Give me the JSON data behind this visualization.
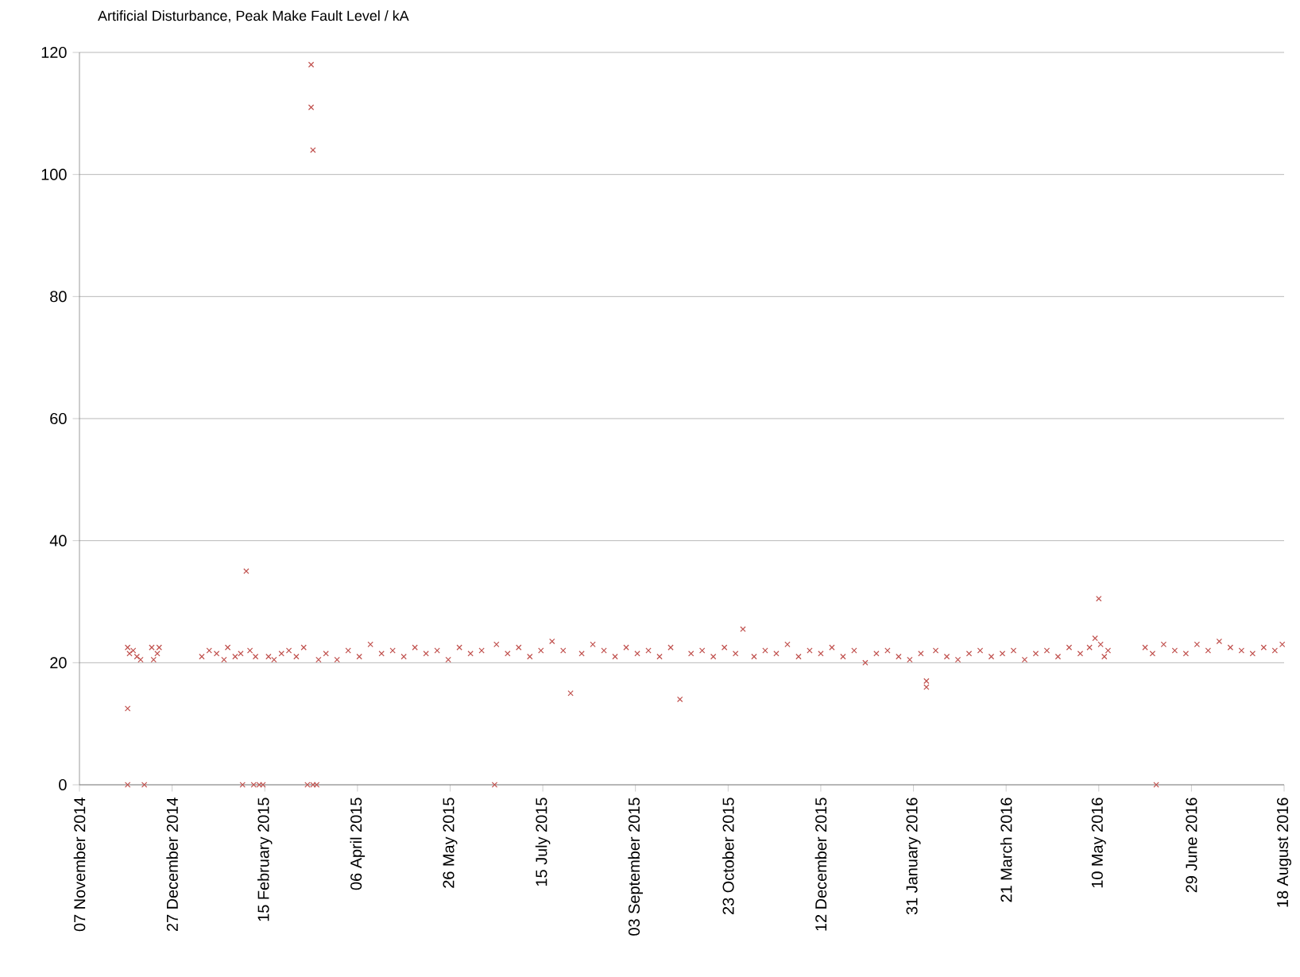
{
  "chart_data": {
    "type": "scatter",
    "title": "Artificial Disturbance,  Peak Make Fault Level / kA",
    "x": [
      "2014-12-03",
      "2014-12-03",
      "2014-12-03",
      "2014-12-04",
      "2014-12-06",
      "2014-12-08",
      "2014-12-10",
      "2014-12-12",
      "2014-12-16",
      "2014-12-17",
      "2014-12-19",
      "2014-12-20",
      "2015-01-12",
      "2015-01-16",
      "2015-01-20",
      "2015-01-24",
      "2015-01-26",
      "2015-01-30",
      "2015-02-02",
      "2015-02-03",
      "2015-02-05",
      "2015-02-07",
      "2015-02-09",
      "2015-02-10",
      "2015-02-12",
      "2015-02-14",
      "2015-02-17",
      "2015-02-20",
      "2015-02-24",
      "2015-02-28",
      "2015-03-04",
      "2015-03-08",
      "2015-03-10",
      "2015-03-12",
      "2015-03-12",
      "2015-03-13",
      "2015-03-13",
      "2015-03-15",
      "2015-03-16",
      "2015-03-20",
      "2015-03-26",
      "2015-04-01",
      "2015-04-07",
      "2015-04-13",
      "2015-04-19",
      "2015-04-25",
      "2015-05-01",
      "2015-05-07",
      "2015-05-13",
      "2015-05-19",
      "2015-05-25",
      "2015-05-31",
      "2015-06-06",
      "2015-06-12",
      "2015-06-19",
      "2015-06-20",
      "2015-06-26",
      "2015-07-02",
      "2015-07-08",
      "2015-07-14",
      "2015-07-20",
      "2015-07-26",
      "2015-07-30",
      "2015-08-05",
      "2015-08-11",
      "2015-08-17",
      "2015-08-23",
      "2015-08-29",
      "2015-09-04",
      "2015-09-10",
      "2015-09-16",
      "2015-09-22",
      "2015-09-27",
      "2015-10-03",
      "2015-10-09",
      "2015-10-15",
      "2015-10-21",
      "2015-10-27",
      "2015-10-31",
      "2015-11-06",
      "2015-11-12",
      "2015-11-18",
      "2015-11-24",
      "2015-11-30",
      "2015-12-06",
      "2015-12-12",
      "2015-12-18",
      "2015-12-24",
      "2015-12-30",
      "2016-01-05",
      "2016-01-11",
      "2016-01-17",
      "2016-01-23",
      "2016-01-29",
      "2016-02-04",
      "2016-02-07",
      "2016-02-07",
      "2016-02-12",
      "2016-02-18",
      "2016-02-24",
      "2016-03-01",
      "2016-03-07",
      "2016-03-13",
      "2016-03-19",
      "2016-03-25",
      "2016-03-31",
      "2016-04-06",
      "2016-04-12",
      "2016-04-18",
      "2016-04-24",
      "2016-04-30",
      "2016-05-05",
      "2016-05-08",
      "2016-05-10",
      "2016-05-11",
      "2016-05-13",
      "2016-05-15",
      "2016-06-04",
      "2016-06-08",
      "2016-06-10",
      "2016-06-14",
      "2016-06-20",
      "2016-06-26",
      "2016-07-02",
      "2016-07-08",
      "2016-07-14",
      "2016-07-20",
      "2016-07-26",
      "2016-08-01",
      "2016-08-07",
      "2016-08-13",
      "2016-08-17"
    ],
    "values": [
      22.5,
      12.5,
      0,
      21.5,
      22,
      21,
      20.5,
      0,
      22.5,
      20.5,
      21.5,
      22.5,
      21,
      22,
      21.5,
      20.5,
      22.5,
      21,
      21.5,
      0,
      35,
      22,
      0,
      21,
      0,
      0,
      21,
      20.5,
      21.5,
      22,
      21,
      22.5,
      0,
      118,
      111,
      104,
      0,
      0,
      20.5,
      21.5,
      20.5,
      22,
      21,
      23,
      21.5,
      22,
      21,
      22.5,
      21.5,
      22,
      20.5,
      22.5,
      21.5,
      22,
      0,
      23,
      21.5,
      22.5,
      21,
      22,
      23.5,
      22,
      15,
      21.5,
      23,
      22,
      21,
      22.5,
      21.5,
      22,
      21,
      22.5,
      14,
      21.5,
      22,
      21,
      22.5,
      21.5,
      25.5,
      21,
      22,
      21.5,
      23,
      21,
      22,
      21.5,
      22.5,
      21,
      22,
      20,
      21.5,
      22,
      21,
      20.5,
      21.5,
      16,
      17,
      22,
      21,
      20.5,
      21.5,
      22,
      21,
      21.5,
      22,
      20.5,
      21.5,
      22,
      21,
      22.5,
      21.5,
      22.5,
      24,
      30.5,
      23,
      21,
      22,
      22.5,
      21.5,
      0,
      23,
      22,
      21.5,
      23,
      22,
      23.5,
      22.5,
      22,
      21.5,
      22.5,
      22,
      23
    ],
    "color": "#c0504d",
    "marker": "cross",
    "grid": "y",
    "xlim": [
      "2014-11-07",
      "2016-08-18"
    ],
    "xticks": [
      {
        "value": "2014-11-07",
        "label": "07 November 2014"
      },
      {
        "value": "2014-12-27",
        "label": "27 December 2014"
      },
      {
        "value": "2015-02-15",
        "label": "15 February 2015"
      },
      {
        "value": "2015-04-06",
        "label": "06 April 2015"
      },
      {
        "value": "2015-05-26",
        "label": "26 May 2015"
      },
      {
        "value": "2015-07-15",
        "label": "15 July 2015"
      },
      {
        "value": "2015-09-03",
        "label": "03 September 2015"
      },
      {
        "value": "2015-10-23",
        "label": "23 October 2015"
      },
      {
        "value": "2015-12-12",
        "label": "12 December 2015"
      },
      {
        "value": "2016-01-31",
        "label": "31 January 2016"
      },
      {
        "value": "2016-03-21",
        "label": "21 March 2016"
      },
      {
        "value": "2016-05-10",
        "label": "10 May 2016"
      },
      {
        "value": "2016-06-29",
        "label": "29 June 2016"
      },
      {
        "value": "2016-08-18",
        "label": "18 August 2016"
      }
    ],
    "ylim": [
      0,
      120
    ],
    "yticks": [
      0,
      20,
      40,
      60,
      80,
      100,
      120
    ]
  }
}
